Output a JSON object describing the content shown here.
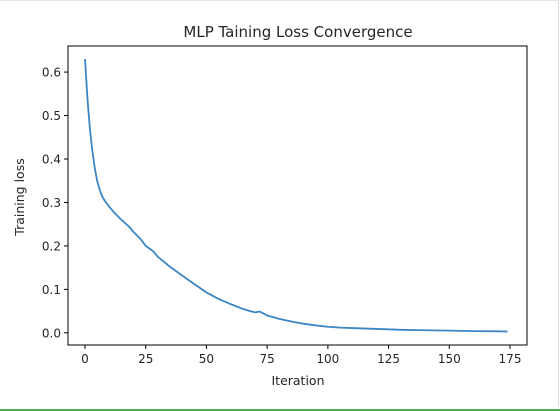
{
  "colors": {
    "line": "#3b86c4",
    "axis": "#000000",
    "status_bar": "#4caf50"
  },
  "chart_data": {
    "type": "line",
    "title": "MLP Taining Loss Convergence",
    "xlabel": "Iteration",
    "ylabel": "Training loss",
    "xlim": [
      -7,
      182
    ],
    "ylim": [
      -0.028,
      0.66
    ],
    "xticks": [
      0,
      25,
      50,
      75,
      100,
      125,
      150,
      175
    ],
    "xtick_labels": [
      "0",
      "25",
      "50",
      "75",
      "100",
      "125",
      "150",
      "175"
    ],
    "yticks": [
      0.0,
      0.1,
      0.2,
      0.3,
      0.4,
      0.5,
      0.6
    ],
    "ytick_labels": [
      "0.0",
      "0.1",
      "0.2",
      "0.3",
      "0.4",
      "0.5",
      "0.6"
    ],
    "grid": false,
    "series": [
      {
        "x": [
          0,
          1,
          2,
          3,
          4,
          5,
          6,
          7,
          8,
          10,
          12,
          15,
          18,
          20,
          23,
          25,
          28,
          30,
          35,
          40,
          45,
          50,
          55,
          60,
          65,
          68,
          70,
          72,
          75,
          80,
          85,
          90,
          95,
          100,
          105,
          110,
          120,
          130,
          140,
          150,
          160,
          170,
          174
        ],
        "values": [
          0.63,
          0.54,
          0.47,
          0.42,
          0.38,
          0.35,
          0.33,
          0.315,
          0.305,
          0.29,
          0.277,
          0.26,
          0.245,
          0.232,
          0.215,
          0.2,
          0.188,
          0.175,
          0.152,
          0.132,
          0.112,
          0.093,
          0.078,
          0.066,
          0.055,
          0.05,
          0.047,
          0.049,
          0.04,
          0.032,
          0.026,
          0.021,
          0.017,
          0.014,
          0.012,
          0.011,
          0.009,
          0.007,
          0.006,
          0.005,
          0.004,
          0.0035,
          0.003
        ]
      }
    ]
  }
}
